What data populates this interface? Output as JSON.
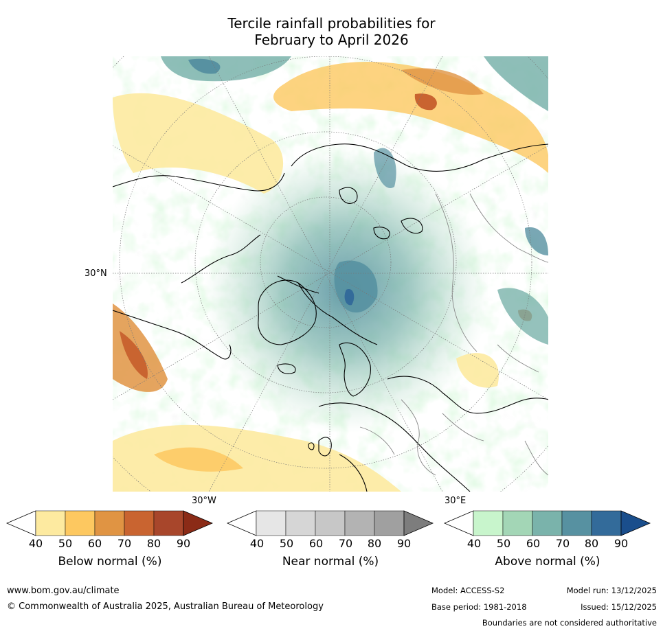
{
  "title": {
    "line1": "Tercile rainfall probabilities for",
    "line2": "February to April 2026"
  },
  "map": {
    "labels": {
      "lat_30n": "30°N",
      "lon_30w": "30°W",
      "lon_30e": "30°E"
    }
  },
  "colorbars": [
    {
      "name": "below",
      "label": "Below normal (%)",
      "ticks": [
        "40",
        "50",
        "60",
        "70",
        "80",
        "90"
      ],
      "colors": [
        "#ffffff",
        "#fdeaa0",
        "#fdc860",
        "#e09443",
        "#c96430",
        "#a8462b",
        "#8b2b17"
      ]
    },
    {
      "name": "near",
      "label": "Near normal (%)",
      "ticks": [
        "40",
        "50",
        "60",
        "70",
        "80",
        "90"
      ],
      "colors": [
        "#ffffff",
        "#e6e6e6",
        "#d6d6d6",
        "#c7c7c7",
        "#b3b3b3",
        "#a0a0a0",
        "#7d7d7d"
      ]
    },
    {
      "name": "above",
      "label": "Above normal (%)",
      "ticks": [
        "40",
        "50",
        "60",
        "70",
        "80",
        "90"
      ],
      "colors": [
        "#ffffff",
        "#c8f5cc",
        "#a3d6b6",
        "#7ab3ab",
        "#5791a1",
        "#336b9a",
        "#1a4e8c"
      ]
    }
  ],
  "footer": {
    "url": "www.bom.gov.au/climate",
    "copyright": "© Commonwealth of Australia 2025, Australian Bureau of Meteorology",
    "model": "Model: ACCESS-S2",
    "base_period": "Base period: 1981-2018",
    "model_run": "Model run: 13/12/2025",
    "issued": "Issued: 15/12/2025",
    "disclaimer": "Boundaries are not considered authoritative"
  }
}
